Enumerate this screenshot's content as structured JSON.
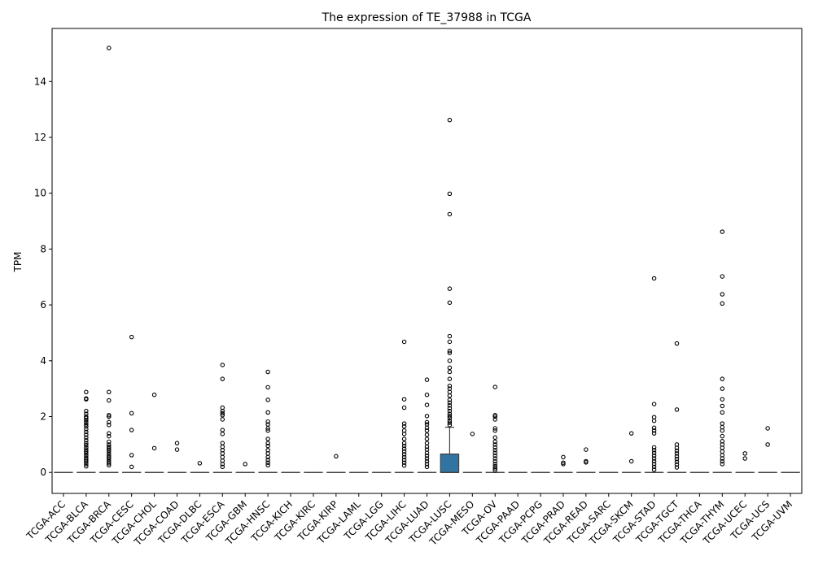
{
  "chart_data": {
    "type": "box",
    "title": "The expression of TE_37988 in TCGA",
    "xlabel": "",
    "ylabel": "TPM",
    "ylim": [
      -0.75,
      15.9
    ],
    "yticks": [
      0,
      2,
      4,
      6,
      8,
      10,
      12,
      14
    ],
    "box_color": "#3274a1",
    "grid": false,
    "categories": [
      "TCGA-ACC",
      "TCGA-BLCA",
      "TCGA-BRCA",
      "TCGA-CESC",
      "TCGA-CHOL",
      "TCGA-COAD",
      "TCGA-DLBC",
      "TCGA-ESCA",
      "TCGA-GBM",
      "TCGA-HNSC",
      "TCGA-KICH",
      "TCGA-KIRC",
      "TCGA-KIRP",
      "TCGA-LAML",
      "TCGA-LGG",
      "TCGA-LIHC",
      "TCGA-LUAD",
      "TCGA-LUSC",
      "TCGA-MESO",
      "TCGA-OV",
      "TCGA-PAAD",
      "TCGA-PCPG",
      "TCGA-PRAD",
      "TCGA-READ",
      "TCGA-SARC",
      "TCGA-SKCM",
      "TCGA-STAD",
      "TCGA-TGCT",
      "TCGA-THCA",
      "TCGA-THYM",
      "TCGA-UCEC",
      "TCGA-UCS",
      "TCGA-UVM"
    ],
    "boxes": [
      {
        "q1": 0,
        "median": 0,
        "q3": 0,
        "whisker_low": 0,
        "whisker_high": 0,
        "outliers": []
      },
      {
        "q1": 0,
        "median": 0,
        "q3": 0,
        "whisker_low": 0,
        "whisker_high": 0,
        "outliers": [
          2.88,
          2.65,
          2.62,
          2.2,
          2.1,
          2.0,
          1.95,
          1.88,
          1.8,
          1.72,
          1.65,
          1.55,
          1.45,
          1.35,
          1.25,
          1.15,
          1.05,
          0.98,
          0.9,
          0.82,
          0.75,
          0.68,
          0.6,
          0.52,
          0.45,
          0.38,
          0.3,
          0.22
        ]
      },
      {
        "q1": 0,
        "median": 0,
        "q3": 0,
        "whisker_low": 0,
        "whisker_high": 0,
        "outliers": [
          15.2,
          2.88,
          2.58,
          2.05,
          2.0,
          1.8,
          1.7,
          1.4,
          1.3,
          1.1,
          1.0,
          0.92,
          0.85,
          0.78,
          0.7,
          0.62,
          0.55,
          0.48,
          0.4,
          0.33,
          0.26
        ]
      },
      {
        "q1": 0,
        "median": 0,
        "q3": 0,
        "whisker_low": 0,
        "whisker_high": 0,
        "outliers": [
          4.85,
          2.12,
          1.52,
          0.62,
          0.2
        ]
      },
      {
        "q1": 0,
        "median": 0,
        "q3": 0,
        "whisker_low": 0,
        "whisker_high": 0,
        "outliers": [
          2.78,
          0.87
        ]
      },
      {
        "q1": 0,
        "median": 0,
        "q3": 0,
        "whisker_low": 0,
        "whisker_high": 0,
        "outliers": [
          1.05,
          0.82
        ]
      },
      {
        "q1": 0,
        "median": 0,
        "q3": 0,
        "whisker_low": 0,
        "whisker_high": 0,
        "outliers": [
          0.33
        ]
      },
      {
        "q1": 0,
        "median": 0,
        "q3": 0,
        "whisker_low": 0,
        "whisker_high": 0,
        "outliers": [
          3.85,
          3.35,
          2.32,
          2.2,
          2.12,
          2.05,
          1.9,
          1.52,
          1.38,
          1.05,
          0.92,
          0.8,
          0.68,
          0.55,
          0.42,
          0.3,
          0.2
        ]
      },
      {
        "q1": 0,
        "median": 0,
        "q3": 0,
        "whisker_low": 0,
        "whisker_high": 0,
        "outliers": [
          0.3
        ]
      },
      {
        "q1": 0,
        "median": 0,
        "q3": 0,
        "whisker_low": 0,
        "whisker_high": 0,
        "outliers": [
          3.6,
          3.05,
          2.6,
          2.15,
          1.82,
          1.72,
          1.58,
          1.5,
          1.2,
          1.05,
          0.95,
          0.8,
          0.68,
          0.55,
          0.45,
          0.35,
          0.26
        ]
      },
      {
        "q1": 0,
        "median": 0,
        "q3": 0,
        "whisker_low": 0,
        "whisker_high": 0,
        "outliers": []
      },
      {
        "q1": 0,
        "median": 0,
        "q3": 0,
        "whisker_low": 0,
        "whisker_high": 0,
        "outliers": []
      },
      {
        "q1": 0,
        "median": 0,
        "q3": 0,
        "whisker_low": 0,
        "whisker_high": 0,
        "outliers": [
          0.58
        ]
      },
      {
        "q1": 0,
        "median": 0,
        "q3": 0,
        "whisker_low": 0,
        "whisker_high": 0,
        "outliers": []
      },
      {
        "q1": 0,
        "median": 0,
        "q3": 0,
        "whisker_low": 0,
        "whisker_high": 0,
        "outliers": []
      },
      {
        "q1": 0,
        "median": 0,
        "q3": 0,
        "whisker_low": 0,
        "whisker_high": 0,
        "outliers": [
          4.68,
          2.62,
          2.32,
          1.75,
          1.65,
          1.5,
          1.38,
          1.2,
          1.05,
          0.95,
          0.85,
          0.75,
          0.65,
          0.55,
          0.45,
          0.35,
          0.25
        ]
      },
      {
        "q1": 0,
        "median": 0,
        "q3": 0,
        "whisker_low": 0,
        "whisker_high": 0,
        "outliers": [
          3.32,
          2.78,
          2.42,
          2.02,
          1.8,
          1.72,
          1.6,
          1.5,
          1.35,
          1.2,
          1.05,
          0.92,
          0.82,
          0.7,
          0.6,
          0.5,
          0.4,
          0.3,
          0.2
        ]
      },
      {
        "q1": 0,
        "median": 0,
        "q3": 0.66,
        "whisker_low": 0,
        "whisker_high": 1.62,
        "outliers": [
          12.62,
          9.98,
          9.25,
          6.58,
          6.08,
          4.88,
          4.68,
          4.35,
          4.28,
          4.0,
          3.75,
          3.6,
          3.35,
          3.1,
          3.0,
          2.88,
          2.75,
          2.6,
          2.5,
          2.4,
          2.3,
          2.2,
          2.1,
          2.02,
          1.95,
          1.85,
          1.78,
          1.7
        ]
      },
      {
        "q1": 0,
        "median": 0,
        "q3": 0,
        "whisker_low": 0,
        "whisker_high": 0,
        "outliers": [
          1.38
        ]
      },
      {
        "q1": 0,
        "median": 0,
        "q3": 0,
        "whisker_low": 0,
        "whisker_high": 0,
        "outliers": [
          3.06,
          2.05,
          2.0,
          1.9,
          1.58,
          1.5,
          1.25,
          1.1,
          1.0,
          0.9,
          0.8,
          0.7,
          0.6,
          0.5,
          0.4,
          0.3,
          0.22,
          0.15,
          0.08
        ]
      },
      {
        "q1": 0,
        "median": 0,
        "q3": 0,
        "whisker_low": 0,
        "whisker_high": 0,
        "outliers": []
      },
      {
        "q1": 0,
        "median": 0,
        "q3": 0,
        "whisker_low": 0,
        "whisker_high": 0,
        "outliers": []
      },
      {
        "q1": 0,
        "median": 0,
        "q3": 0,
        "whisker_low": 0,
        "whisker_high": 0,
        "outliers": [
          0.55,
          0.35,
          0.3
        ]
      },
      {
        "q1": 0,
        "median": 0,
        "q3": 0,
        "whisker_low": 0,
        "whisker_high": 0,
        "outliers": [
          0.82,
          0.4,
          0.36
        ]
      },
      {
        "q1": 0,
        "median": 0,
        "q3": 0,
        "whisker_low": 0,
        "whisker_high": 0,
        "outliers": []
      },
      {
        "q1": 0,
        "median": 0,
        "q3": 0,
        "whisker_low": 0,
        "whisker_high": 0,
        "outliers": [
          1.4,
          0.4
        ]
      },
      {
        "q1": 0,
        "median": 0,
        "q3": 0,
        "whisker_low": 0,
        "whisker_high": 0,
        "outliers": [
          6.95,
          2.45,
          1.98,
          1.85,
          1.6,
          1.5,
          1.4,
          0.9,
          0.8,
          0.7,
          0.6,
          0.5,
          0.4,
          0.3,
          0.2,
          0.1
        ]
      },
      {
        "q1": 0,
        "median": 0,
        "q3": 0,
        "whisker_low": 0,
        "whisker_high": 0,
        "outliers": [
          4.62,
          2.25,
          1.0,
          0.88,
          0.78,
          0.68,
          0.58,
          0.48,
          0.38,
          0.28,
          0.18
        ]
      },
      {
        "q1": 0,
        "median": 0,
        "q3": 0,
        "whisker_low": 0,
        "whisker_high": 0,
        "outliers": []
      },
      {
        "q1": 0,
        "median": 0,
        "q3": 0,
        "whisker_low": 0,
        "whisker_high": 0,
        "outliers": [
          8.62,
          7.02,
          6.38,
          6.05,
          3.35,
          3.0,
          2.62,
          2.38,
          2.15,
          1.75,
          1.62,
          1.5,
          1.3,
          1.12,
          1.0,
          0.88,
          0.75,
          0.62,
          0.5,
          0.4,
          0.3
        ]
      },
      {
        "q1": 0,
        "median": 0,
        "q3": 0,
        "whisker_low": 0,
        "whisker_high": 0,
        "outliers": [
          0.68,
          0.5
        ]
      },
      {
        "q1": 0,
        "median": 0,
        "q3": 0,
        "whisker_low": 0,
        "whisker_high": 0,
        "outliers": [
          1.58,
          1.0
        ]
      },
      {
        "q1": 0,
        "median": 0,
        "q3": 0,
        "whisker_low": 0,
        "whisker_high": 0,
        "outliers": []
      }
    ]
  }
}
